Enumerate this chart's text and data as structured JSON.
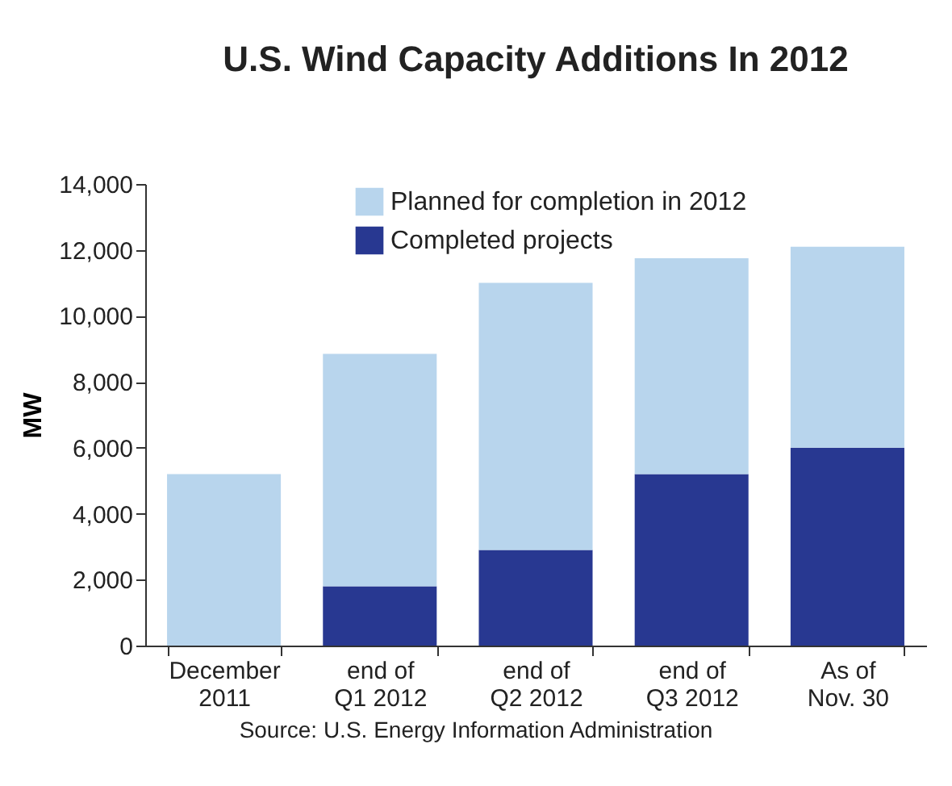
{
  "chart_data": {
    "type": "bar",
    "title": "U.S. Wind Capacity Additions In 2012",
    "ylabel": "MW",
    "annotations": [
      "Source: U.S. Energy Information Administration"
    ],
    "categories": [
      "December\n2011",
      "end of\nQ1 2012",
      "end of\nQ2 2012",
      "end of\nQ3 2012",
      "As of\nNov. 30"
    ],
    "stacked": true,
    "series": [
      {
        "name": "Completed projects",
        "color": "#283891",
        "values": [
          0,
          1800,
          2900,
          5200,
          6000
        ]
      },
      {
        "name": "Planned for completion in 2012",
        "color": "#b8d5ed",
        "values": [
          5200,
          7050,
          8100,
          6550,
          6100
        ]
      }
    ],
    "ylim": [
      0,
      14000
    ],
    "yticks": [
      0,
      {
        "value": 2000,
        "label": "2,000"
      },
      {
        "value": 4000,
        "label": "4,000"
      },
      {
        "value": 6000,
        "label": "6,000"
      },
      {
        "value": 8000,
        "label": "8,000"
      },
      {
        "value": 10000,
        "label": "10,000"
      },
      {
        "value": 12000,
        "label": "12,000"
      },
      {
        "value": 14000,
        "label": "14,000"
      }
    ],
    "grid": false,
    "legend": "top left"
  }
}
